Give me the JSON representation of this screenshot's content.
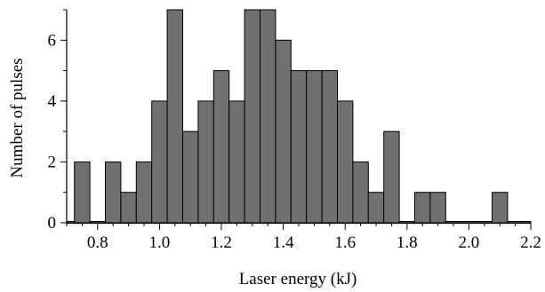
{
  "chart_data": {
    "type": "bar",
    "title": "",
    "xlabel": "Laser energy (kJ)",
    "ylabel": "Number of pulses",
    "xlim": [
      0.7,
      2.2
    ],
    "ylim": [
      0,
      7
    ],
    "x_ticks": [
      "0.8",
      "1.0",
      "1.2",
      "1.4",
      "1.6",
      "1.8",
      "2.0",
      "2.2"
    ],
    "y_ticks": [
      "0",
      "2",
      "4",
      "6"
    ],
    "bin_width": 0.05,
    "bar_color": "#707070",
    "bins": [
      {
        "x": 0.7,
        "count": 0
      },
      {
        "x": 0.75,
        "count": 2
      },
      {
        "x": 0.8,
        "count": 0
      },
      {
        "x": 0.85,
        "count": 2
      },
      {
        "x": 0.9,
        "count": 1
      },
      {
        "x": 0.95,
        "count": 2
      },
      {
        "x": 1.0,
        "count": 4
      },
      {
        "x": 1.05,
        "count": 7
      },
      {
        "x": 1.1,
        "count": 3
      },
      {
        "x": 1.15,
        "count": 4
      },
      {
        "x": 1.2,
        "count": 5
      },
      {
        "x": 1.25,
        "count": 4
      },
      {
        "x": 1.3,
        "count": 7
      },
      {
        "x": 1.35,
        "count": 7
      },
      {
        "x": 1.4,
        "count": 6
      },
      {
        "x": 1.45,
        "count": 5
      },
      {
        "x": 1.5,
        "count": 5
      },
      {
        "x": 1.55,
        "count": 5
      },
      {
        "x": 1.6,
        "count": 4
      },
      {
        "x": 1.65,
        "count": 2
      },
      {
        "x": 1.7,
        "count": 1
      },
      {
        "x": 1.75,
        "count": 3
      },
      {
        "x": 1.8,
        "count": 0
      },
      {
        "x": 1.85,
        "count": 1
      },
      {
        "x": 1.9,
        "count": 1
      },
      {
        "x": 1.95,
        "count": 0
      },
      {
        "x": 2.0,
        "count": 0
      },
      {
        "x": 2.05,
        "count": 0
      },
      {
        "x": 2.1,
        "count": 1
      },
      {
        "x": 2.15,
        "count": 0
      },
      {
        "x": 2.2,
        "count": 0
      }
    ]
  }
}
